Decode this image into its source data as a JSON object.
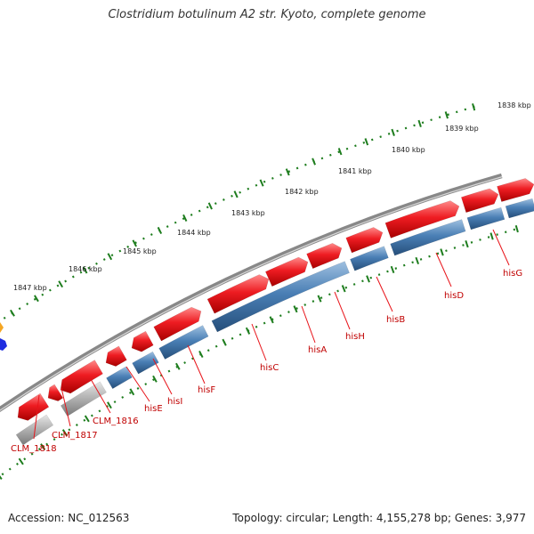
{
  "title": "Clostridium botulinum A2 str. Kyoto, complete genome",
  "footer": {
    "accession": "Accession: NC_012563",
    "topology": "Topology: circular; Length: 4,155,278 bp; Genes: 3,977"
  },
  "scale_ticks": [
    {
      "label": "1838 kbp"
    },
    {
      "label": "1839 kbp"
    },
    {
      "label": "1840 kbp"
    },
    {
      "label": "1841 kbp"
    },
    {
      "label": "1842 kbp"
    },
    {
      "label": "1843 kbp"
    },
    {
      "label": "1844 kbp"
    },
    {
      "label": "1845 kbp"
    },
    {
      "label": "1846 kbp"
    },
    {
      "label": "1847 kbp"
    }
  ],
  "gene_labels": [
    {
      "name": "CLM_1818"
    },
    {
      "name": "CLM_1817"
    },
    {
      "name": "CLM_1816"
    },
    {
      "name": "hisE"
    },
    {
      "name": "hisI"
    },
    {
      "name": "hisF"
    },
    {
      "name": "hisC"
    },
    {
      "name": "hisA"
    },
    {
      "name": "hisH"
    },
    {
      "name": "hisB"
    },
    {
      "name": "hisD"
    },
    {
      "name": "hisG"
    }
  ],
  "colors": {
    "forward_feature": "#e8141a",
    "gene_track": "#4a7fb5",
    "pseudo_track": "#b4b4b4",
    "backbone": "#888888",
    "tick": "#1e7d1e",
    "label": "#c00000"
  }
}
